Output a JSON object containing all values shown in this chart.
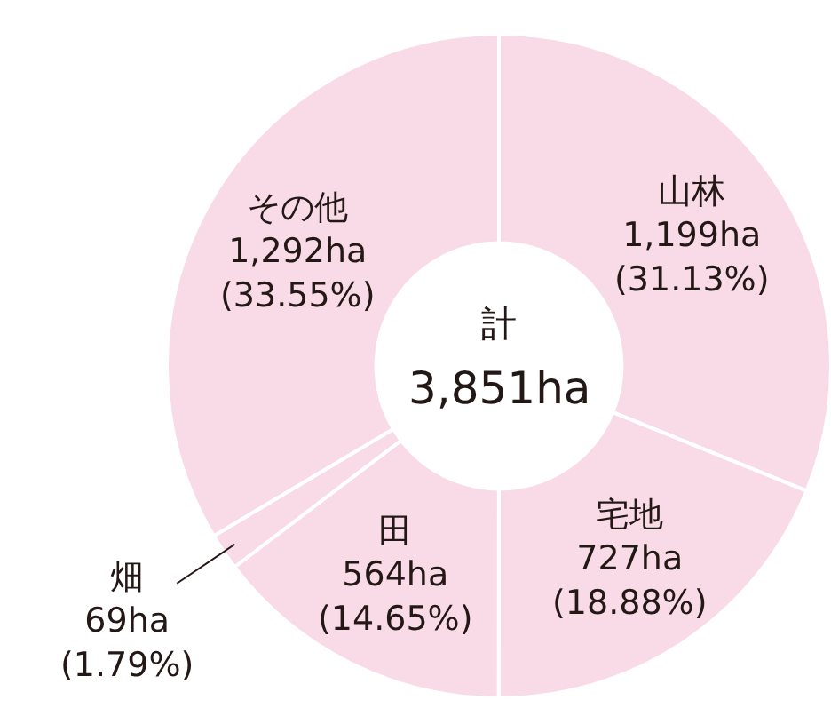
{
  "chart_data": {
    "type": "donut",
    "categories": [
      "山林",
      "宅地",
      "田",
      "畑",
      "その他"
    ],
    "values": [
      1199,
      727,
      564,
      69,
      1292
    ],
    "colors": [
      "#f9dbe8",
      "#f9dbe8",
      "#f9dbe8",
      "#f9dbe8",
      "#f9dbe8"
    ],
    "value_labels": [
      "1,199ha (31.13%)",
      "727ha (18.88%)",
      "564ha (14.65%)",
      "69ha (1.79%)",
      "1,292ha (33.55%)"
    ],
    "annotations": [
      "計",
      "3,851ha"
    ]
  }
}
